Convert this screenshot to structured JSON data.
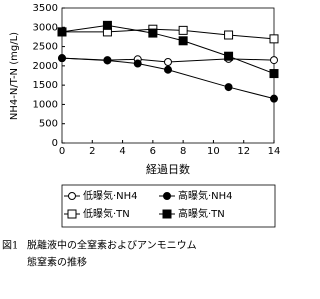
{
  "chart_data": {
    "type": "line",
    "y_label": "NH4-N/T-N (mg/L)",
    "x_label": "経過日数",
    "xlim": [
      0,
      14
    ],
    "xticks": [
      0,
      2,
      4,
      6,
      8,
      10,
      12,
      14
    ],
    "ylim": [
      0,
      3500
    ],
    "yticks": [
      0,
      500,
      1000,
      1500,
      2000,
      2500,
      3000,
      3500
    ],
    "series": [
      {
        "name": "低曝気·NH4",
        "color": "#000000",
        "marker": "circle-open",
        "x": [
          0,
          3,
          5,
          7,
          11,
          14
        ],
        "values": [
          2200,
          2150,
          2170,
          2100,
          2180,
          2150
        ]
      },
      {
        "name": "高曝気·NH4",
        "color": "#000000",
        "marker": "circle-filled",
        "x": [
          0,
          3,
          5,
          7,
          11,
          14
        ],
        "values": [
          2200,
          2140,
          2060,
          1900,
          1450,
          1150
        ]
      },
      {
        "name": "低曝気·TN",
        "color": "#000000",
        "marker": "square-open",
        "x": [
          0,
          3,
          6,
          8,
          11,
          14
        ],
        "values": [
          2880,
          2880,
          2950,
          2920,
          2800,
          2700
        ]
      },
      {
        "name": "高曝気·TN",
        "color": "#000000",
        "marker": "square-filled",
        "x": [
          0,
          3,
          6,
          8,
          11,
          14
        ],
        "values": [
          2880,
          3050,
          2850,
          2650,
          2250,
          1800
        ]
      }
    ],
    "figure_label": "図1",
    "caption_lines": [
      "脱離液中の全窒素およびアンモニウム",
      "態窒素の推移"
    ]
  }
}
